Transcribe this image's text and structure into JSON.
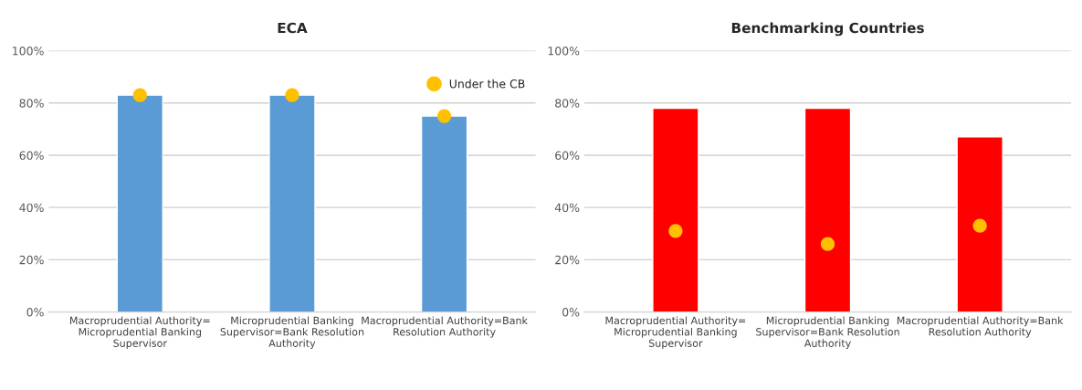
{
  "chart_data": [
    {
      "type": "bar",
      "title": "ECA",
      "categories": [
        "Macroprudential Authority=\nMicroprudential Banking\nSupervisor",
        "Microprudential Banking\nSupervisor=Bank Resolution\nAuthority",
        "Macroprudential Authority=Bank\nResolution Authority"
      ],
      "series": [
        {
          "color": "#5b9bd5",
          "values": [
            83,
            83,
            75
          ]
        },
        {
          "type": "scatter",
          "name": "Under the CB",
          "color": "#ffc000",
          "x": [
            "Macroprudential Authority=\nMicroprudential Banking\nSupervisor",
            "Microprudential Banking\nSupervisor=Bank Resolution\nAuthority",
            "Macroprudential Authority=Bank\nResolution Authority"
          ],
          "values": [
            83,
            83,
            75
          ]
        }
      ],
      "ylim": [
        0,
        100
      ],
      "yticks": [
        {
          "value": 0,
          "label": "0%"
        },
        {
          "value": 20,
          "label": "20%"
        },
        {
          "value": 40,
          "label": "40%"
        },
        {
          "value": 60,
          "label": "60%"
        },
        {
          "value": 80,
          "label": "80%"
        },
        {
          "value": 100,
          "label": "100%"
        }
      ],
      "grid": "y",
      "legend": "top right",
      "marker": "circle"
    },
    {
      "type": "bar",
      "title": "Benchmarking Countries",
      "categories": [
        "Macroprudential Authority=\nMicroprudential Banking\nSupervisor",
        "Microprudential Banking\nSupervisor=Bank Resolution\nAuthority",
        "Macroprudential Authority=Bank\nResolution Authority"
      ],
      "series": [
        {
          "color": "#ff0000",
          "values": [
            78,
            78,
            67
          ]
        },
        {
          "type": "scatter",
          "color": "#ffc000",
          "x": [
            "Macroprudential Authority=\nMicroprudential Banking\nSupervisor",
            "Microprudential Banking\nSupervisor=Bank Resolution\nAuthority",
            "Macroprudential Authority=Bank\nResolution Authority"
          ],
          "values": [
            31,
            26,
            33
          ]
        }
      ],
      "ylim": [
        0,
        100
      ],
      "yticks": [
        {
          "value": 0,
          "label": "0%"
        },
        {
          "value": 20,
          "label": "20%"
        },
        {
          "value": 40,
          "label": "40%"
        },
        {
          "value": 60,
          "label": "60%"
        },
        {
          "value": 80,
          "label": "80%"
        },
        {
          "value": 100,
          "label": "100%"
        }
      ],
      "grid": "y",
      "marker": "circle"
    }
  ]
}
